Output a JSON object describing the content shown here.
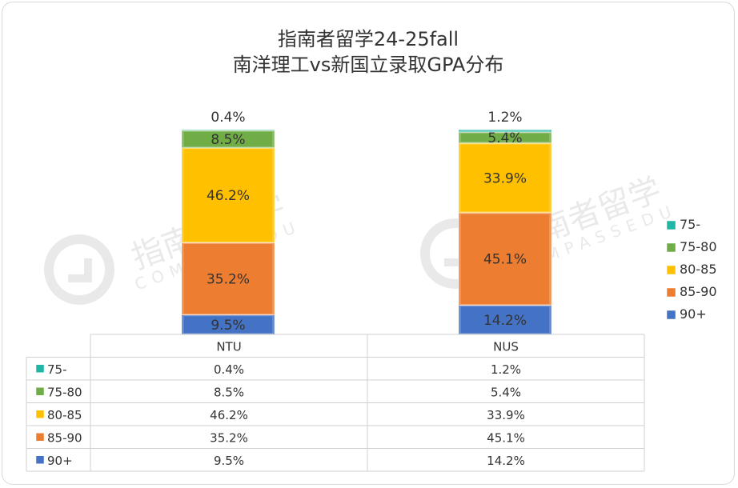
{
  "title_lines": [
    "指南者留学24-25fall",
    "南洋理工vs新国立录取GPA分布"
  ],
  "watermark": {
    "cn": "指南者留学",
    "en": "COMPASSEDU"
  },
  "chart_data": {
    "type": "bar",
    "stacked": true,
    "percent_stacked": true,
    "categories": [
      "NTU",
      "NUS"
    ],
    "series": [
      {
        "name": "90+",
        "color": "#4472C4",
        "values": [
          9.5,
          14.2
        ],
        "labels": [
          "9.5%",
          "14.2%"
        ]
      },
      {
        "name": "85-90",
        "color": "#ED7D31",
        "values": [
          35.2,
          45.1
        ],
        "labels": [
          "35.2%",
          "45.1%"
        ]
      },
      {
        "name": "80-85",
        "color": "#FFC000",
        "values": [
          46.2,
          33.9
        ],
        "labels": [
          "46.2%",
          "33.9%"
        ]
      },
      {
        "name": "75-80",
        "color": "#70AD47",
        "values": [
          8.5,
          5.4
        ],
        "labels": [
          "8.5%",
          "5.4%"
        ]
      },
      {
        "name": "75-",
        "color": "#1FB6A6",
        "values": [
          0.4,
          1.2
        ],
        "labels": [
          "0.4%",
          "1.2%"
        ]
      }
    ],
    "legend_position": "right",
    "gridlines": false,
    "data_table": true
  }
}
